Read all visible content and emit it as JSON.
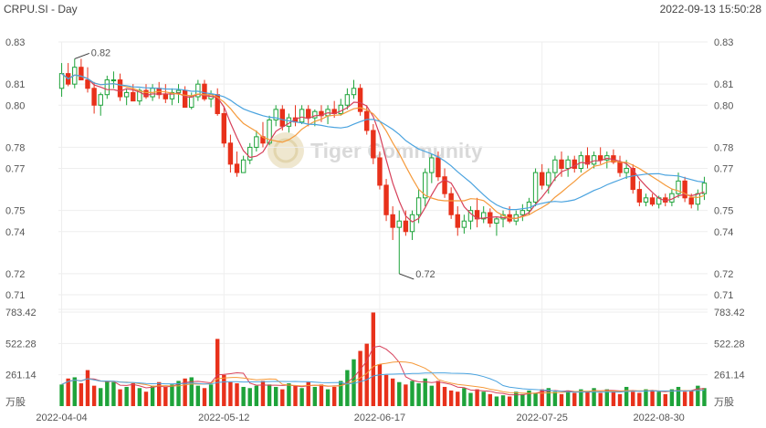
{
  "header": {
    "title": "CRPU.SI - Day",
    "timestamp": "2022-09-13 15:50:28"
  },
  "watermark": {
    "text": "Tiger Community"
  },
  "colors": {
    "up": "#1ea33a",
    "down": "#e8311b",
    "ma_short": "#d6405a",
    "ma_mid": "#f59a3b",
    "ma_long": "#4aa3df",
    "grid": "#eeeeee",
    "axis_text": "#555555"
  },
  "chart_data": [
    {
      "type": "candlestick",
      "title": "CRPU.SI - Day",
      "ylim": [
        0.71,
        0.83
      ],
      "y_ticks": [
        "0.83",
        "0.81",
        "0.80",
        "0.78",
        "0.77",
        "0.75",
        "0.74",
        "0.72",
        "0.71"
      ],
      "x_ticks": [
        "2022-04-04",
        "2022-05-12",
        "2022-06-17",
        "2022-07-25",
        "2022-08-30"
      ],
      "annotations": [
        {
          "text": "0.82",
          "value": 0.82
        },
        {
          "text": "0.72",
          "value": 0.72
        }
      ],
      "moving_averages": [
        "short",
        "mid",
        "long"
      ],
      "ohlc": [
        [
          0.808,
          0.82,
          0.804,
          0.815
        ],
        [
          0.815,
          0.82,
          0.809,
          0.81
        ],
        [
          0.81,
          0.822,
          0.808,
          0.818
        ],
        [
          0.818,
          0.822,
          0.812,
          0.812
        ],
        [
          0.812,
          0.818,
          0.806,
          0.808
        ],
        [
          0.808,
          0.811,
          0.796,
          0.8
        ],
        [
          0.8,
          0.806,
          0.795,
          0.805
        ],
        [
          0.805,
          0.814,
          0.803,
          0.812
        ],
        [
          0.812,
          0.816,
          0.808,
          0.812
        ],
        [
          0.812,
          0.815,
          0.802,
          0.804
        ],
        [
          0.804,
          0.808,
          0.8,
          0.806
        ],
        [
          0.806,
          0.81,
          0.802,
          0.802
        ],
        [
          0.802,
          0.808,
          0.8,
          0.807
        ],
        [
          0.807,
          0.81,
          0.803,
          0.804
        ],
        [
          0.804,
          0.81,
          0.802,
          0.808
        ],
        [
          0.808,
          0.811,
          0.803,
          0.805
        ],
        [
          0.805,
          0.81,
          0.801,
          0.803
        ],
        [
          0.803,
          0.808,
          0.8,
          0.806
        ],
        [
          0.806,
          0.81,
          0.801,
          0.807
        ],
        [
          0.807,
          0.809,
          0.799,
          0.799
        ],
        [
          0.799,
          0.806,
          0.798,
          0.804
        ],
        [
          0.804,
          0.812,
          0.802,
          0.81
        ],
        [
          0.81,
          0.812,
          0.802,
          0.803
        ],
        [
          0.803,
          0.807,
          0.799,
          0.805
        ],
        [
          0.805,
          0.808,
          0.795,
          0.796
        ],
        [
          0.796,
          0.799,
          0.78,
          0.782
        ],
        [
          0.782,
          0.786,
          0.768,
          0.772
        ],
        [
          0.772,
          0.778,
          0.766,
          0.768
        ],
        [
          0.768,
          0.776,
          0.768,
          0.774
        ],
        [
          0.774,
          0.782,
          0.772,
          0.78
        ],
        [
          0.78,
          0.788,
          0.778,
          0.785
        ],
        [
          0.785,
          0.792,
          0.78,
          0.782
        ],
        [
          0.782,
          0.795,
          0.781,
          0.793
        ],
        [
          0.793,
          0.8,
          0.79,
          0.798
        ],
        [
          0.798,
          0.8,
          0.788,
          0.79
        ],
        [
          0.79,
          0.796,
          0.787,
          0.794
        ],
        [
          0.794,
          0.8,
          0.79,
          0.792
        ],
        [
          0.792,
          0.8,
          0.791,
          0.798
        ],
        [
          0.798,
          0.8,
          0.79,
          0.794
        ],
        [
          0.794,
          0.798,
          0.79,
          0.797
        ],
        [
          0.797,
          0.8,
          0.792,
          0.795
        ],
        [
          0.795,
          0.8,
          0.791,
          0.798
        ],
        [
          0.798,
          0.802,
          0.794,
          0.796
        ],
        [
          0.796,
          0.803,
          0.795,
          0.8
        ],
        [
          0.8,
          0.808,
          0.798,
          0.805
        ],
        [
          0.805,
          0.812,
          0.803,
          0.808
        ],
        [
          0.808,
          0.81,
          0.795,
          0.797
        ],
        [
          0.797,
          0.8,
          0.786,
          0.788
        ],
        [
          0.788,
          0.791,
          0.772,
          0.775
        ],
        [
          0.775,
          0.778,
          0.76,
          0.762
        ],
        [
          0.762,
          0.765,
          0.745,
          0.748
        ],
        [
          0.748,
          0.752,
          0.736,
          0.742
        ],
        [
          0.742,
          0.75,
          0.72,
          0.745
        ],
        [
          0.745,
          0.75,
          0.738,
          0.74
        ],
        [
          0.74,
          0.75,
          0.736,
          0.748
        ],
        [
          0.748,
          0.76,
          0.744,
          0.756
        ],
        [
          0.756,
          0.77,
          0.752,
          0.768
        ],
        [
          0.768,
          0.777,
          0.763,
          0.775
        ],
        [
          0.775,
          0.778,
          0.764,
          0.766
        ],
        [
          0.766,
          0.77,
          0.756,
          0.758
        ],
        [
          0.758,
          0.761,
          0.746,
          0.748
        ],
        [
          0.748,
          0.752,
          0.738,
          0.742
        ],
        [
          0.742,
          0.748,
          0.739,
          0.745
        ],
        [
          0.745,
          0.752,
          0.741,
          0.75
        ],
        [
          0.75,
          0.756,
          0.742,
          0.746
        ],
        [
          0.746,
          0.752,
          0.744,
          0.749
        ],
        [
          0.749,
          0.751,
          0.742,
          0.744
        ],
        [
          0.744,
          0.747,
          0.738,
          0.746
        ],
        [
          0.746,
          0.75,
          0.742,
          0.748
        ],
        [
          0.748,
          0.752,
          0.744,
          0.745
        ],
        [
          0.745,
          0.75,
          0.743,
          0.748
        ],
        [
          0.748,
          0.753,
          0.745,
          0.75
        ],
        [
          0.75,
          0.756,
          0.748,
          0.754
        ],
        [
          0.754,
          0.77,
          0.752,
          0.768
        ],
        [
          0.768,
          0.772,
          0.76,
          0.762
        ],
        [
          0.762,
          0.77,
          0.758,
          0.768
        ],
        [
          0.768,
          0.776,
          0.764,
          0.774
        ],
        [
          0.774,
          0.778,
          0.766,
          0.77
        ],
        [
          0.77,
          0.776,
          0.766,
          0.774
        ],
        [
          0.774,
          0.776,
          0.768,
          0.77
        ],
        [
          0.77,
          0.778,
          0.768,
          0.776
        ],
        [
          0.776,
          0.78,
          0.77,
          0.772
        ],
        [
          0.772,
          0.778,
          0.77,
          0.776
        ],
        [
          0.776,
          0.78,
          0.772,
          0.774
        ],
        [
          0.774,
          0.778,
          0.77,
          0.776
        ],
        [
          0.776,
          0.779,
          0.772,
          0.773
        ],
        [
          0.773,
          0.776,
          0.766,
          0.768
        ],
        [
          0.768,
          0.774,
          0.765,
          0.77
        ],
        [
          0.77,
          0.772,
          0.758,
          0.76
        ],
        [
          0.76,
          0.764,
          0.752,
          0.754
        ],
        [
          0.754,
          0.758,
          0.752,
          0.756
        ],
        [
          0.756,
          0.758,
          0.752,
          0.753
        ],
        [
          0.753,
          0.757,
          0.751,
          0.756
        ],
        [
          0.756,
          0.758,
          0.752,
          0.754
        ],
        [
          0.754,
          0.76,
          0.752,
          0.758
        ],
        [
          0.758,
          0.768,
          0.756,
          0.764
        ],
        [
          0.764,
          0.766,
          0.754,
          0.756
        ],
        [
          0.756,
          0.758,
          0.751,
          0.753
        ],
        [
          0.753,
          0.76,
          0.75,
          0.758
        ],
        [
          0.758,
          0.766,
          0.755,
          0.763
        ]
      ],
      "volume": [
        180,
        230,
        240,
        190,
        300,
        170,
        150,
        210,
        200,
        140,
        160,
        190,
        150,
        120,
        170,
        200,
        160,
        180,
        210,
        230,
        240,
        170,
        150,
        180,
        560,
        260,
        200,
        190,
        160,
        150,
        170,
        210,
        180,
        160,
        140,
        190,
        170,
        150,
        200,
        160,
        180,
        140,
        160,
        210,
        300,
        390,
        460,
        520,
        780,
        350,
        260,
        230,
        200,
        180,
        210,
        190,
        230,
        170,
        210,
        160,
        130,
        120,
        150,
        110,
        140,
        120,
        100,
        80,
        90,
        80,
        120,
        100,
        130,
        110,
        140,
        150,
        120,
        100,
        130,
        110,
        140,
        120,
        150,
        110,
        140,
        130,
        100,
        160,
        120,
        110,
        140,
        130,
        120,
        100,
        140,
        160,
        120,
        130,
        170,
        150
      ],
      "volume_ylim": [
        0,
        783.42
      ],
      "volume_ticks": [
        "783.42",
        "522.28",
        "261.14"
      ],
      "volume_unit": "万股"
    }
  ]
}
